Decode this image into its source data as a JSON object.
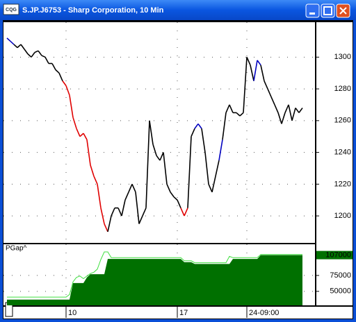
{
  "chart_data": [
    {
      "type": "line",
      "title": "S.JP.J6753 - Sharp Corporation, 10 Min",
      "x": [
        0,
        1,
        2,
        3,
        4,
        5,
        6,
        7,
        8,
        9,
        10,
        11,
        12,
        13,
        14,
        15,
        16,
        17,
        18,
        19,
        20,
        21,
        22,
        23,
        24,
        25,
        26,
        27,
        28,
        29,
        30,
        31,
        32,
        33,
        34,
        35,
        36,
        37,
        38,
        39,
        40,
        41,
        42,
        43,
        44,
        45,
        46,
        47,
        48,
        49,
        50,
        51,
        52,
        53,
        54,
        55,
        56,
        57,
        58,
        59,
        60,
        61,
        62,
        63,
        64,
        65,
        66,
        67,
        68,
        69,
        70,
        71,
        72,
        73,
        74,
        75,
        76,
        77,
        78,
        79,
        80,
        81,
        82,
        83,
        84,
        85
      ],
      "series": [
        {
          "values": [
            1312,
            1310,
            1308,
            1306,
            1308,
            1305,
            1302,
            1300,
            1303,
            1304,
            1301,
            1300,
            1296,
            1296,
            1292,
            1290,
            1285,
            1282,
            1276,
            1262,
            1255,
            1250,
            1252,
            1248,
            1232,
            1225,
            1220,
            1205,
            1195,
            1190,
            1200,
            1205,
            1205,
            1200,
            1210,
            1215,
            1220,
            1215,
            1195,
            1200,
            1205,
            1260,
            1245,
            1238,
            1235,
            1240,
            1220,
            1215,
            1212,
            1210,
            1205,
            1200,
            1205,
            1250,
            1255,
            1258,
            1255,
            1240,
            1220,
            1215,
            1225,
            1235,
            1248,
            1265,
            1270,
            1265,
            1265,
            1263,
            1265,
            1300,
            1295,
            1285,
            1298,
            1295,
            1285,
            1280,
            1275,
            1270,
            1265,
            1258,
            1265,
            1270,
            1260,
            1268,
            1265,
            1268
          ],
          "colors": [
            "#0000c0",
            "#0000c0",
            "#000",
            "#000",
            "#000",
            "#000",
            "#000",
            "#000",
            "#000",
            "#000",
            "#000",
            "#000",
            "#000",
            "#000",
            "#000",
            "#000",
            "#e00000",
            "#e00000",
            "#e00000",
            "#e00000",
            "#e00000",
            "#e00000",
            "#e00000",
            "#e00000",
            "#e00000",
            "#e00000",
            "#e00000",
            "#e00000",
            "#e00000",
            "#000",
            "#000",
            "#000",
            "#000",
            "#000",
            "#000",
            "#000",
            "#000",
            "#000",
            "#000",
            "#000",
            "#000",
            "#000",
            "#000",
            "#000",
            "#000",
            "#000",
            "#000",
            "#000",
            "#000",
            "#000",
            "#e00000",
            "#e00000",
            "#000",
            "#000",
            "#0000c0",
            "#0000c0",
            "#000",
            "#000",
            "#000",
            "#000",
            "#000",
            "#0000c0",
            "#000",
            "#000",
            "#000",
            "#000",
            "#000",
            "#000",
            "#000",
            "#000",
            "#000",
            "#0000c0",
            "#0000c0",
            "#000",
            "#000",
            "#000",
            "#000",
            "#000",
            "#000",
            "#000",
            "#000",
            "#000",
            "#000",
            "#000",
            "#000",
            "#000"
          ]
        }
      ],
      "xlim": [
        -1,
        88.6
      ],
      "xticks": [
        {
          "value": 17,
          "label": "10"
        },
        {
          "value": 49,
          "label": "17"
        },
        {
          "value": 69,
          "label": "24-09:00"
        }
      ],
      "ylim": [
        1183,
        1322
      ],
      "yticks": [
        1200,
        1220,
        1240,
        1260,
        1280,
        1300
      ],
      "grid": true
    },
    {
      "type": "area",
      "series": [
        {
          "name": "PGap^",
          "color": "#007000",
          "values": [
            37000,
            37000,
            37000,
            37000,
            37000,
            37000,
            37000,
            37000,
            37000,
            37000,
            37000,
            37000,
            37000,
            37000,
            37000,
            37000,
            37000,
            37000,
            37000,
            63000,
            63000,
            63000,
            63000,
            72000,
            77000,
            77000,
            77000,
            77000,
            77000,
            101000,
            101000,
            101000,
            101000,
            101000,
            101000,
            101000,
            101000,
            101000,
            101000,
            101000,
            101000,
            101000,
            101000,
            101000,
            101000,
            101000,
            101000,
            101000,
            101000,
            101000,
            101000,
            96000,
            96000,
            96000,
            93000,
            93000,
            93000,
            93000,
            93000,
            93000,
            93000,
            93000,
            93000,
            93000,
            93000,
            101000,
            101000,
            101000,
            101000,
            101000,
            101000,
            101000,
            101000,
            107000,
            107000,
            107000,
            107000,
            107000,
            107000,
            107000,
            107000,
            107000,
            107000,
            107000,
            107000,
            107000
          ]
        },
        {
          "color": "#40e040",
          "values": [
            41000,
            41000,
            41000,
            41000,
            41000,
            41000,
            41000,
            41000,
            41000,
            41000,
            41000,
            41000,
            41000,
            41000,
            41000,
            41000,
            41000,
            41000,
            45000,
            65000,
            72000,
            74000,
            70000,
            74000,
            78000,
            80000,
            85000,
            100000,
            112000,
            112000,
            103000,
            103000,
            103000,
            103000,
            103000,
            103000,
            103000,
            103000,
            103000,
            103000,
            103000,
            103000,
            103000,
            103000,
            103000,
            103000,
            103000,
            103000,
            103000,
            103000,
            103000,
            98000,
            98000,
            98000,
            95000,
            95000,
            95000,
            95000,
            95000,
            95000,
            95000,
            95000,
            95000,
            95000,
            105000,
            103000,
            103000,
            103000,
            103000,
            103000,
            103000,
            103000,
            103000,
            108000,
            108000,
            108000,
            108000,
            108000,
            108000,
            108000,
            108000,
            108000,
            108000,
            108000,
            108000,
            108000
          ]
        }
      ],
      "xlim": [
        -1,
        88.6
      ],
      "ylim": [
        28000,
        124000
      ],
      "yticks": [
        50000,
        75000
      ],
      "grid": true
    }
  ]
}
